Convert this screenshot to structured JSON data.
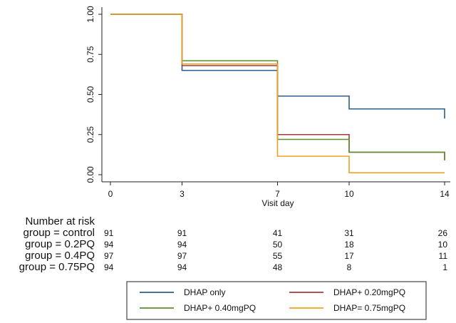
{
  "chart_data": {
    "type": "line",
    "subtype": "step",
    "xlabel": "Visit day",
    "ylabel": "",
    "x_ticks": [
      0,
      3,
      7,
      10,
      14
    ],
    "y_ticks": [
      "0.00",
      "0.25",
      "0.50",
      "0.75",
      "1.00"
    ],
    "xlim": [
      0,
      14
    ],
    "ylim": [
      0,
      1
    ],
    "grid": false,
    "series": [
      {
        "name": "DHAP only",
        "color": "#2c5f8a",
        "points": [
          [
            0,
            1.0
          ],
          [
            3,
            0.65
          ],
          [
            7,
            0.49
          ],
          [
            10,
            0.41
          ],
          [
            14,
            0.35
          ]
        ]
      },
      {
        "name": "DHAP+ 0.20mgPQ",
        "color": "#a83a3a",
        "points": [
          [
            0,
            1.0
          ],
          [
            3,
            0.68
          ],
          [
            7,
            0.25
          ],
          [
            10,
            0.14
          ],
          [
            14,
            0.09
          ]
        ]
      },
      {
        "name": "DHAP+ 0.40mgPQ",
        "color": "#5a8f2e",
        "points": [
          [
            0,
            1.0
          ],
          [
            3,
            0.71
          ],
          [
            7,
            0.22
          ],
          [
            10,
            0.14
          ],
          [
            14,
            0.09
          ]
        ]
      },
      {
        "name": "DHAP= 0.75mgPQ",
        "color": "#f0a020",
        "points": [
          [
            0,
            1.0
          ],
          [
            3,
            0.69
          ],
          [
            7,
            0.115
          ],
          [
            10,
            0.012
          ],
          [
            14,
            0.012
          ]
        ]
      }
    ],
    "legend": {
      "placement": "bottom",
      "entries": [
        "DHAP only",
        "DHAP+ 0.20mgPQ",
        "DHAP+ 0.40mgPQ",
        "DHAP= 0.75mgPQ"
      ]
    },
    "risk_table": {
      "title": "Number at risk",
      "rows": [
        {
          "label": "group = control",
          "values": [
            91,
            91,
            41,
            31,
            26
          ]
        },
        {
          "label": "group = 0.2PQ",
          "values": [
            94,
            94,
            50,
            18,
            10
          ]
        },
        {
          "label": "group = 0.4PQ",
          "values": [
            97,
            97,
            55,
            17,
            11
          ]
        },
        {
          "label": "group = 0.75PQ",
          "values": [
            94,
            94,
            48,
            8,
            1
          ]
        }
      ]
    }
  }
}
